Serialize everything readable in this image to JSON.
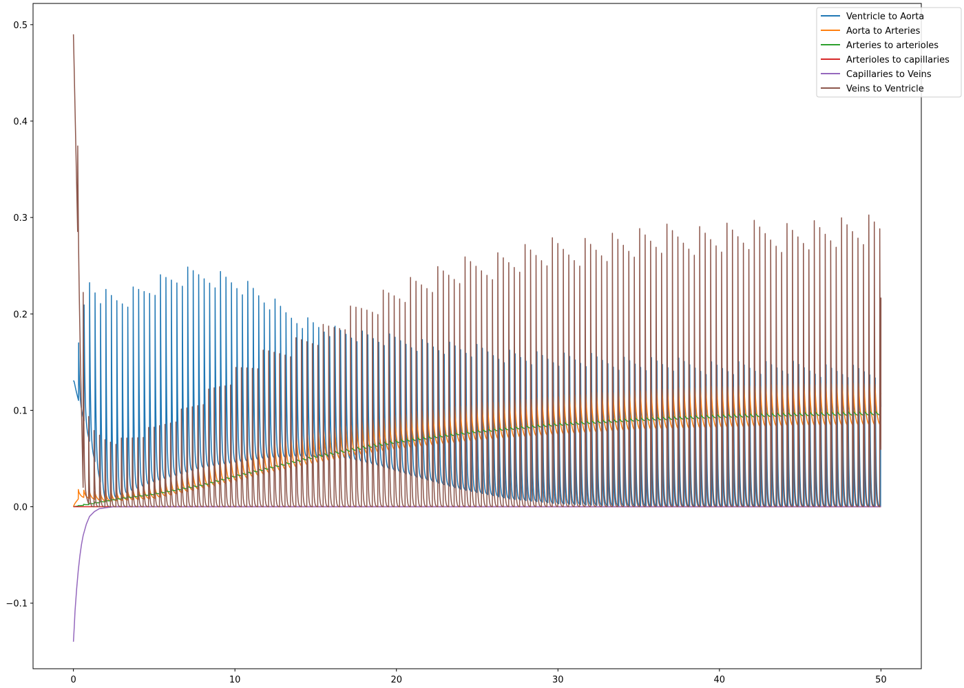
{
  "chart_data": {
    "type": "line",
    "title": "",
    "xlabel": "",
    "ylabel": "",
    "xlim": [
      -2.5,
      52.5
    ],
    "ylim": [
      -0.168,
      0.522
    ],
    "grid": false,
    "legend_placement": "top-right",
    "x_ticks": [
      0,
      10,
      20,
      30,
      40,
      50
    ],
    "x_tick_labels": [
      "0",
      "10",
      "20",
      "30",
      "40",
      "50"
    ],
    "y_ticks": [
      -0.1,
      0.0,
      0.1,
      0.2,
      0.3,
      0.4,
      0.5
    ],
    "y_tick_labels": [
      "−0.1",
      "0.0",
      "0.1",
      "0.2",
      "0.3",
      "0.4",
      "0.5"
    ],
    "t_end": 50,
    "cycles": 148,
    "series": [
      {
        "name": "Ventricle to Aorta",
        "color": "#1f77b4",
        "peak_envelope": [
          [
            0,
            0.13
          ],
          [
            0.9,
            0.246
          ],
          [
            1.8,
            0.231
          ],
          [
            2.6,
            0.227
          ],
          [
            3.4,
            0.229
          ],
          [
            4.2,
            0.234
          ],
          [
            5.5,
            0.243
          ],
          [
            6.3,
            0.247
          ],
          [
            7.5,
            0.25
          ],
          [
            8.3,
            0.25
          ],
          [
            9,
            0.248
          ],
          [
            10,
            0.243
          ],
          [
            11,
            0.234
          ],
          [
            12,
            0.222
          ],
          [
            13,
            0.21
          ],
          [
            14,
            0.202
          ],
          [
            15,
            0.196
          ],
          [
            16,
            0.19
          ],
          [
            17,
            0.186
          ],
          [
            18,
            0.183
          ],
          [
            19,
            0.18
          ],
          [
            20,
            0.179
          ],
          [
            22,
            0.175
          ],
          [
            25,
            0.169
          ],
          [
            28,
            0.164
          ],
          [
            30,
            0.161
          ],
          [
            35,
            0.157
          ],
          [
            40,
            0.153
          ],
          [
            45,
            0.151
          ],
          [
            50,
            0.147
          ]
        ],
        "trough_envelope": [
          [
            0,
            0.13
          ],
          [
            2,
            0.005
          ],
          [
            5,
            0.025
          ],
          [
            8,
            0.04
          ],
          [
            10,
            0.045
          ],
          [
            12,
            0.05
          ],
          [
            14,
            0.052
          ],
          [
            17,
            0.05
          ],
          [
            19,
            0.042
          ],
          [
            21,
            0.032
          ],
          [
            24,
            0.018
          ],
          [
            27,
            0.008
          ],
          [
            30,
            0.003
          ],
          [
            33,
            0.001
          ],
          [
            38,
            0.0
          ],
          [
            50,
            0.0
          ]
        ],
        "phase": 0.05,
        "sharpness": 7
      },
      {
        "name": "Aorta to Arteries",
        "color": "#ff7f0e",
        "peak_envelope": [
          [
            0,
            0.0
          ],
          [
            0.3,
            0.018
          ],
          [
            2,
            0.015
          ],
          [
            5,
            0.022
          ],
          [
            8,
            0.04
          ],
          [
            10,
            0.052
          ],
          [
            12,
            0.063
          ],
          [
            15,
            0.077
          ],
          [
            18,
            0.089
          ],
          [
            20,
            0.096
          ],
          [
            25,
            0.108
          ],
          [
            30,
            0.116
          ],
          [
            35,
            0.122
          ],
          [
            40,
            0.126
          ],
          [
            45,
            0.128
          ],
          [
            50,
            0.129
          ]
        ],
        "trough_envelope": [
          [
            0,
            0.0
          ],
          [
            0.4,
            0.01
          ],
          [
            2,
            0.005
          ],
          [
            5,
            0.008
          ],
          [
            8,
            0.018
          ],
          [
            10,
            0.025
          ],
          [
            12,
            0.033
          ],
          [
            15,
            0.043
          ],
          [
            18,
            0.052
          ],
          [
            20,
            0.057
          ],
          [
            25,
            0.066
          ],
          [
            30,
            0.072
          ],
          [
            35,
            0.077
          ],
          [
            40,
            0.079
          ],
          [
            45,
            0.081
          ],
          [
            50,
            0.082
          ]
        ],
        "phase": 0.1,
        "sharpness": 3
      },
      {
        "name": "Arteries to arterioles",
        "color": "#2ca02c",
        "peak_envelope": [
          [
            0,
            0.0
          ],
          [
            1,
            0.004
          ],
          [
            3,
            0.01
          ],
          [
            5,
            0.015
          ],
          [
            8,
            0.025
          ],
          [
            10,
            0.034
          ],
          [
            12,
            0.042
          ],
          [
            15,
            0.055
          ],
          [
            18,
            0.065
          ],
          [
            20,
            0.071
          ],
          [
            25,
            0.081
          ],
          [
            30,
            0.089
          ],
          [
            35,
            0.094
          ],
          [
            40,
            0.098
          ],
          [
            45,
            0.1
          ],
          [
            50,
            0.101
          ]
        ],
        "trough_envelope": [
          [
            0,
            0.0
          ],
          [
            1,
            0.002
          ],
          [
            3,
            0.008
          ],
          [
            5,
            0.012
          ],
          [
            8,
            0.021
          ],
          [
            10,
            0.03
          ],
          [
            12,
            0.038
          ],
          [
            15,
            0.05
          ],
          [
            18,
            0.059
          ],
          [
            20,
            0.065
          ],
          [
            25,
            0.076
          ],
          [
            30,
            0.083
          ],
          [
            35,
            0.088
          ],
          [
            40,
            0.091
          ],
          [
            45,
            0.093
          ],
          [
            50,
            0.094
          ]
        ],
        "phase": 0.15,
        "sharpness": 2
      },
      {
        "name": "Arterioles to capillaries",
        "color": "#d62728",
        "constant": 0.0
      },
      {
        "name": "Capillaries to Veins",
        "color": "#9467bd",
        "points": [
          [
            0,
            -0.14
          ],
          [
            0.05,
            -0.125
          ],
          [
            0.1,
            -0.108
          ],
          [
            0.2,
            -0.085
          ],
          [
            0.3,
            -0.066
          ],
          [
            0.4,
            -0.051
          ],
          [
            0.5,
            -0.039
          ],
          [
            0.6,
            -0.03
          ],
          [
            0.8,
            -0.018
          ],
          [
            1,
            -0.01
          ],
          [
            1.3,
            -0.005
          ],
          [
            1.6,
            -0.002
          ],
          [
            2,
            -0.001
          ],
          [
            2.5,
            0.0
          ],
          [
            50,
            0.0
          ]
        ]
      },
      {
        "name": "Veins to Ventricle",
        "color": "#8c564b",
        "peak_envelope": [
          [
            0,
            0.49
          ],
          [
            1,
            0.083
          ],
          [
            2,
            0.074
          ],
          [
            3,
            0.072
          ],
          [
            4,
            0.078
          ],
          [
            5,
            0.085
          ],
          [
            6,
            0.096
          ],
          [
            7,
            0.107
          ],
          [
            8,
            0.119
          ],
          [
            9,
            0.132
          ],
          [
            10,
            0.145
          ],
          [
            11,
            0.155
          ],
          [
            12,
            0.165
          ],
          [
            13,
            0.173
          ],
          [
            14,
            0.18
          ],
          [
            15,
            0.187
          ],
          [
            16,
            0.196
          ],
          [
            17,
            0.207
          ],
          [
            18,
            0.219
          ],
          [
            19,
            0.228
          ],
          [
            20,
            0.236
          ],
          [
            22,
            0.248
          ],
          [
            24,
            0.258
          ],
          [
            26,
            0.267
          ],
          [
            28,
            0.275
          ],
          [
            30,
            0.281
          ],
          [
            32,
            0.285
          ],
          [
            34,
            0.289
          ],
          [
            36,
            0.292
          ],
          [
            38,
            0.295
          ],
          [
            40,
            0.297
          ],
          [
            42,
            0.298
          ],
          [
            44,
            0.3
          ],
          [
            46,
            0.301
          ],
          [
            48,
            0.302
          ],
          [
            50,
            0.303
          ]
        ],
        "trough_envelope": [
          [
            0,
            0.49
          ],
          [
            0.6,
            0.02
          ],
          [
            1,
            0.0
          ],
          [
            50,
            0.0
          ]
        ],
        "phase": 0.22,
        "sharpness": 8,
        "end_value": 0.217
      }
    ]
  }
}
